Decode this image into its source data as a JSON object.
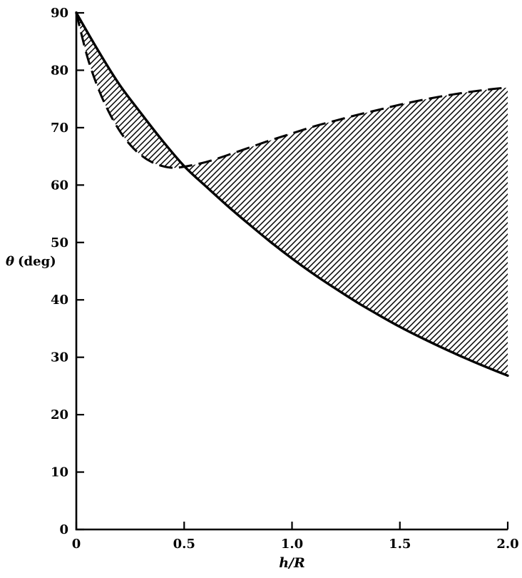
{
  "figure": {
    "background": "#ffffff",
    "ink": "#000000"
  },
  "chart_data": {
    "type": "line",
    "title": "",
    "xlabel": "h/R",
    "ylabel": "θ (deg)",
    "ylabel_symbol": "θ",
    "ylabel_unit": "(deg)",
    "xlim": [
      0,
      2.0
    ],
    "ylim": [
      0,
      90
    ],
    "grid": false,
    "legend": "none",
    "x_ticks": [
      0,
      0.5,
      1.0,
      1.5,
      2.0
    ],
    "x_tick_labels": [
      "0",
      "0.5",
      "1.0",
      "1.5",
      "2.0"
    ],
    "y_ticks": [
      0,
      10,
      20,
      30,
      40,
      50,
      60,
      70,
      80,
      90
    ],
    "y_tick_labels": [
      "0",
      "10",
      "20",
      "30",
      "40",
      "50",
      "60",
      "70",
      "80",
      "90"
    ],
    "series": [
      {
        "name": "solid-curve",
        "style": "solid",
        "x": [
          0,
          0.1,
          0.2,
          0.3,
          0.4,
          0.5,
          0.6,
          0.7,
          0.8,
          0.9,
          1.0,
          1.1,
          1.2,
          1.3,
          1.4,
          1.5,
          1.6,
          1.7,
          1.8,
          1.9,
          2.0
        ],
        "y": [
          90,
          83.5,
          77.5,
          72.5,
          67.7,
          63.3,
          59.8,
          56.4,
          53.2,
          50.1,
          47.2,
          44.5,
          42.0,
          39.6,
          37.4,
          35.3,
          33.4,
          31.6,
          29.9,
          28.3,
          26.8
        ]
      },
      {
        "name": "dashed-curve",
        "style": "dashed",
        "x": [
          0,
          0.05,
          0.1,
          0.15,
          0.2,
          0.25,
          0.3,
          0.35,
          0.4,
          0.45,
          0.5,
          0.6,
          0.7,
          0.8,
          0.9,
          1.0,
          1.1,
          1.2,
          1.3,
          1.4,
          1.5,
          1.6,
          1.7,
          1.8,
          1.9,
          2.0
        ],
        "y": [
          90,
          82.5,
          77.0,
          72.8,
          69.5,
          67.0,
          65.2,
          64.0,
          63.3,
          63.0,
          63.2,
          64.0,
          65.2,
          66.5,
          67.8,
          69.0,
          70.2,
          71.2,
          72.2,
          73.1,
          74.0,
          74.8,
          75.5,
          76.1,
          76.6,
          77.0
        ]
      }
    ],
    "shaded_region": {
      "between": [
        "solid-curve",
        "dashed-curve"
      ],
      "fill": "diagonal-hatch",
      "crossing_point": {
        "x": 0.5,
        "y": 63.2
      }
    }
  }
}
